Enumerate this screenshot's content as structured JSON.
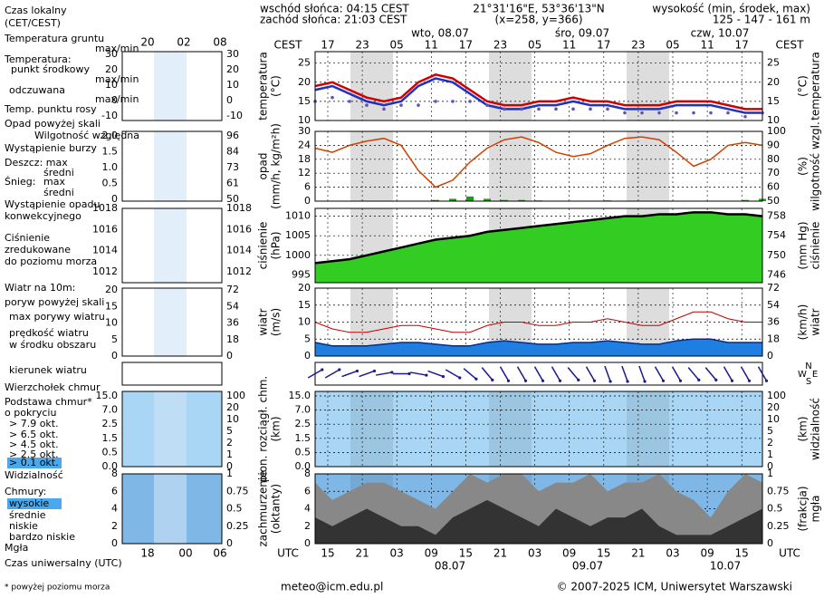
{
  "header": {
    "sunrise": "wschód słońca: 04:15 CEST",
    "sunset": "zachód słońca: 21:03 CEST",
    "coords": "21°31'16\"E, 53°36'13\"N",
    "grid": "(x=258,  y=366)",
    "height_title": "wysokość (min, środek, max)",
    "heights": "125 - 147 - 161 m"
  },
  "time_axis": {
    "top_unit": "CEST",
    "top_hours": [
      "17",
      "23",
      "05",
      "11",
      "17",
      "23",
      "05",
      "11",
      "17",
      "23",
      "05",
      "11",
      "17"
    ],
    "days": [
      "wto, 08.07",
      "śro, 09.07",
      "czw, 10.07"
    ],
    "bottom_unit": "UTC",
    "bottom_hours": [
      "15",
      "21",
      "03",
      "09",
      "15",
      "21",
      "03",
      "09",
      "15",
      "21",
      "03",
      "09",
      "15"
    ],
    "bottom_days": [
      "08.07",
      "09.07",
      "10.07"
    ],
    "mini_top": [
      "20",
      "02",
      "08"
    ],
    "mini_bottom": [
      "18",
      "00",
      "06"
    ]
  },
  "legend": [
    {
      "text": "Czas lokalny",
      "color": "#000000"
    },
    {
      "text": "(CET/CEST)",
      "color": "#000000"
    },
    {
      "text": "Temperatura gruntu",
      "color": "#c00000"
    },
    {
      "text": "max/min",
      "color": "#c00000"
    },
    {
      "text": "Temperatura:",
      "color": "#000000"
    },
    {
      "text": "punkt środkowy",
      "color": "#d00000"
    },
    {
      "text": "max/min",
      "color": "#e8b0b0"
    },
    {
      "text": "odczuwana",
      "color": "#2030c0"
    },
    {
      "text": "max/min",
      "color": "#b0b0e0"
    },
    {
      "text": "Temp. punktu rosy",
      "color": "#6050c0"
    },
    {
      "text": "Opad powyżej skali",
      "color": "#c00000"
    },
    {
      "text": "Wilgotność względna",
      "color": "#c04000"
    },
    {
      "text": "Wystąpienie burzy",
      "color": "#000000"
    },
    {
      "text": "Deszcz: max",
      "color": "#008000"
    },
    {
      "text": "średni",
      "color": "#008000"
    },
    {
      "text": "Śnieg:",
      "color": "#1a1a8c"
    },
    {
      "text": "max",
      "color": "#1a1a8c"
    },
    {
      "text": "średni",
      "color": "#1a1a8c"
    },
    {
      "text": "Wystąpienie opadu",
      "color": "#c00000"
    },
    {
      "text": "konwekcyjnego",
      "color": "#c00000"
    },
    {
      "text": "Ciśnienie",
      "color": "#000000"
    },
    {
      "text": "zredukowane",
      "color": "#000000"
    },
    {
      "text": "do poziomu morza",
      "color": "#000000"
    },
    {
      "text": "Wiatr na 10m:",
      "color": "#000000"
    },
    {
      "text": "poryw powyżej skali",
      "color": "#c00000"
    },
    {
      "text": "max porywy wiatru",
      "color": "#c00000"
    },
    {
      "text": "prędkość wiatru",
      "color": "#1a1a8c"
    },
    {
      "text": "w środku obszaru",
      "color": "#1a1a8c"
    },
    {
      "text": "kierunek wiatru",
      "color": "#1a1a8c"
    },
    {
      "text": "Wierzchołek chmur",
      "color": "#8b1a1a"
    },
    {
      "text": "Podstawa chmur*",
      "color": "#000000"
    },
    {
      "text": "o pokryciu",
      "color": "#000000"
    },
    {
      "text": "> 7.9 okt.",
      "color": "#000000"
    },
    {
      "text": "> 6.5 okt.",
      "color": "#555555"
    },
    {
      "text": "> 4.5 okt.",
      "color": "#999999"
    },
    {
      "text": "> 2.5 okt.",
      "color": "#dddddd"
    },
    {
      "text": "> 0.1 okt.",
      "color": "#ffffff"
    },
    {
      "text": "Widzialność",
      "color": "#e08000"
    },
    {
      "text": "Chmury:",
      "color": "#000000"
    },
    {
      "text": "wysokie",
      "color": "#ffffff"
    },
    {
      "text": "średnie",
      "color": "#cccccc"
    },
    {
      "text": "niskie",
      "color": "#000000"
    },
    {
      "text": "bardzo niskie",
      "color": "#000000"
    },
    {
      "text": "Mgła",
      "color": "#e08000"
    },
    {
      "text": "Czas uniwersalny (UTC)",
      "color": "#000000"
    },
    {
      "text": "* powyżej poziomu morza",
      "color": "#000000"
    }
  ],
  "panels": [
    {
      "left_title": "temperatura",
      "left_unit": "(°C)",
      "right_unit": "(°C)",
      "right_title": "temperatura",
      "ylim": [
        10,
        28
      ],
      "yticks": [
        10,
        15,
        20,
        25
      ],
      "y2ticks": [
        10,
        15,
        20,
        25
      ],
      "mini_left": [
        30,
        20,
        10,
        0,
        -10
      ],
      "mini_right": [
        30,
        20,
        10,
        0,
        -10
      ]
    },
    {
      "left_title": "opad",
      "left_unit": "(mm/h, kg/m²h)",
      "right_unit": "(%)",
      "right_title": "wilgotność wzgl.",
      "ylim": [
        0,
        30
      ],
      "yticks": [
        0,
        6,
        12,
        18,
        24,
        30
      ],
      "y2lim": [
        50,
        100
      ],
      "y2ticks": [
        50,
        60,
        70,
        80,
        90,
        100
      ],
      "mini_left": [
        {
          "value": 2,
          "label": "2.0"
        },
        1.5,
        {
          "value": 1,
          "label": "1.0"
        },
        0.5,
        0
      ],
      "mini_right": [
        96,
        84,
        73,
        61,
        50
      ]
    },
    {
      "left_title": "ciśnienie",
      "left_unit": "(hPa)",
      "right_unit": "(mm Hg)",
      "right_title": "ciśnienie",
      "ylim": [
        993,
        1012
      ],
      "yticks": [
        995,
        1000,
        1005,
        1010
      ],
      "y2ticks": [
        746,
        750,
        754,
        758
      ],
      "mini_left": [
        1018,
        1016,
        1014,
        1012
      ],
      "mini_right": [
        1018,
        1016,
        1014,
        1012
      ]
    },
    {
      "left_title": "wiatr",
      "left_unit": "(m/s)",
      "right_unit": "(km/h)",
      "right_title": "wiatr",
      "ylim": [
        0,
        20
      ],
      "yticks": [
        0,
        5,
        10,
        15,
        20
      ],
      "y2ticks": [
        0,
        18,
        36,
        54,
        72
      ],
      "mini_left": [
        20,
        15,
        10,
        5,
        0
      ],
      "mini_right": [
        72,
        54,
        36,
        18,
        0
      ]
    },
    {
      "left_title": "pion. rozciągł. chm.",
      "left_unit": "(km)",
      "right_unit": "(km)",
      "right_title": "widzialność",
      "yticks": [
        {
          "value": 15,
          "label": "15.0"
        },
        {
          "value": 7,
          "label": "7.0"
        },
        2.5,
        1.5,
        0.5,
        {
          "value": 0,
          "label": "0.0"
        }
      ],
      "y2ticks": [
        100,
        20,
        10,
        5,
        2,
        1,
        0
      ],
      "mini_left": [
        {
          "value": 15,
          "label": "15.0"
        },
        {
          "value": 7,
          "label": "7.0"
        },
        2.5,
        1.5,
        0.5,
        {
          "value": 0,
          "label": "0.0"
        }
      ],
      "mini_right": [
        100,
        20,
        10,
        5,
        2,
        1,
        0
      ]
    },
    {
      "left_title": "zachmurzenie",
      "left_unit": "(oktanty)",
      "right_unit": "(frakcja)",
      "right_title": "mgła",
      "ylim": [
        0,
        8
      ],
      "yticks": [
        0,
        2,
        4,
        6,
        8
      ],
      "y2ticks": [
        0,
        0.25,
        0.5,
        0.75,
        1
      ],
      "mini_left": [
        8,
        6,
        4,
        2,
        0
      ],
      "mini_right": [
        1,
        0.75,
        0.5,
        0.25,
        0
      ]
    }
  ],
  "series": {
    "temperature": [
      19,
      20,
      18,
      16,
      15,
      16,
      20,
      22,
      21,
      18,
      15,
      14,
      14,
      15,
      15,
      16,
      15,
      15,
      14,
      14,
      14,
      15,
      15,
      15,
      14,
      13,
      13
    ],
    "perceived": [
      18,
      19,
      17,
      15,
      14,
      15,
      19,
      21,
      20,
      17,
      14,
      13,
      13,
      14,
      14,
      15,
      14,
      14,
      13,
      13,
      13,
      14,
      14,
      14,
      13,
      12,
      12
    ],
    "dew_point": [
      15,
      16,
      15,
      14,
      13,
      14,
      14,
      15,
      15,
      15,
      14,
      13,
      13,
      13,
      13,
      13,
      13,
      13,
      12,
      12,
      12,
      12,
      12,
      12,
      12,
      11,
      12
    ],
    "humidity": [
      88,
      85,
      90,
      93,
      95,
      90,
      72,
      60,
      65,
      78,
      88,
      94,
      96,
      92,
      85,
      82,
      84,
      90,
      95,
      96,
      94,
      85,
      75,
      80,
      90,
      92,
      90
    ],
    "precipitation": [
      0,
      0,
      0,
      0,
      0,
      0,
      0,
      0.5,
      1,
      2,
      1,
      0.5,
      0.5,
      0.3,
      0,
      0,
      0.2,
      0.3,
      0,
      0,
      0,
      0,
      0,
      0,
      0,
      0.5,
      1
    ],
    "pressure": [
      998,
      998.5,
      999,
      1000,
      1001,
      1002,
      1003,
      1004,
      1004.5,
      1005,
      1006,
      1006.5,
      1007,
      1007.5,
      1008,
      1008.5,
      1009,
      1009.5,
      1010,
      1010,
      1010.5,
      1010.5,
      1011,
      1011,
      1010.5,
      1010.5,
      1010
    ],
    "wind_speed": [
      4,
      3,
      3,
      3,
      3.5,
      4,
      4,
      3.5,
      3,
      3,
      4,
      4.5,
      4,
      3.5,
      3.5,
      4,
      4,
      4.5,
      4,
      3.5,
      3.5,
      4.5,
      5,
      5,
      4,
      4,
      4
    ],
    "wind_gust": [
      10,
      8,
      7,
      7,
      8,
      9,
      9,
      8,
      7,
      7,
      9,
      10,
      10,
      9,
      9,
      10,
      10,
      11,
      10,
      9,
      9,
      11,
      13,
      13,
      11,
      10,
      10
    ],
    "wind_direction": [
      240,
      240,
      250,
      250,
      260,
      270,
      280,
      290,
      300,
      310,
      320,
      330,
      330,
      330,
      330,
      320,
      330,
      340,
      340,
      340,
      330,
      330,
      320,
      320,
      330,
      330,
      330
    ],
    "cloud_total": [
      7,
      5,
      6,
      7,
      7,
      6,
      5,
      4,
      6,
      8,
      7,
      8,
      8,
      6,
      7,
      7,
      8,
      6,
      7,
      7,
      8,
      6,
      5,
      3,
      6,
      8,
      7
    ],
    "cloud_low": [
      3,
      2,
      3,
      4,
      3,
      2,
      2,
      1,
      3,
      4,
      5,
      4,
      3,
      2,
      4,
      3,
      2,
      3,
      3,
      4,
      2,
      1,
      1,
      1,
      2,
      3,
      4
    ]
  },
  "wind_direction_panel": {
    "compass": [
      "N",
      "W",
      "E",
      "S"
    ]
  },
  "footer": {
    "email": "meteo@icm.edu.pl",
    "copyright": "© 2007-2025 ICM, Uniwersytet Warszawski"
  }
}
